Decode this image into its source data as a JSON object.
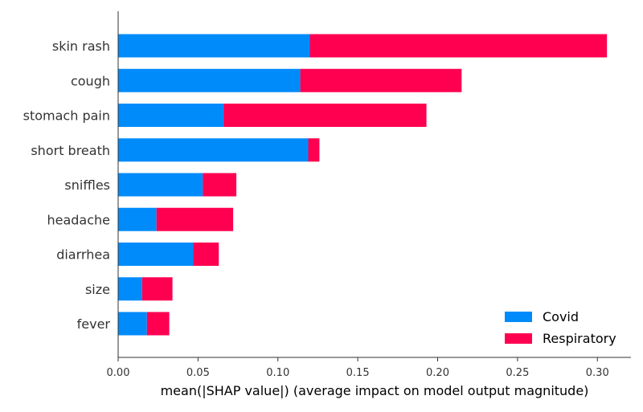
{
  "chart_data": {
    "type": "bar",
    "orientation": "horizontal",
    "stacked": true,
    "title": "",
    "xlabel": "mean(|SHAP value|) (average impact on model output magnitude)",
    "ylabel": "",
    "xlim": [
      0.0,
      0.32
    ],
    "x_ticks": [
      0.0,
      0.05,
      0.1,
      0.15,
      0.2,
      0.25,
      0.3
    ],
    "x_tick_labels": [
      "0.00",
      "0.05",
      "0.10",
      "0.15",
      "0.20",
      "0.25",
      "0.30"
    ],
    "grid": false,
    "legend_position": "lower-right",
    "categories": [
      "skin rash",
      "cough",
      "stomach pain",
      "short breath",
      "sniffles",
      "headache",
      "diarrhea",
      "size",
      "fever"
    ],
    "series": [
      {
        "name": "Covid",
        "color": "#008bfb",
        "values": [
          0.12,
          0.114,
          0.066,
          0.119,
          0.053,
          0.024,
          0.047,
          0.015,
          0.018
        ]
      },
      {
        "name": "Respiratory",
        "color": "#ff0051",
        "values": [
          0.186,
          0.101,
          0.127,
          0.007,
          0.021,
          0.048,
          0.016,
          0.019,
          0.014
        ]
      }
    ]
  }
}
